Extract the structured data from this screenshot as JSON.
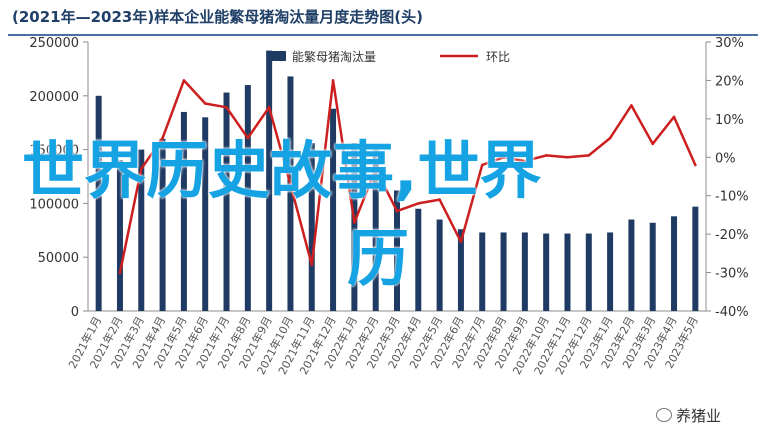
{
  "title": "(2021年—2023年)样本企业能繁母猪淘汰量月度走势图(头)",
  "overlay": {
    "line1": "世界历史故事,世界",
    "line2": "历"
  },
  "watermark": "养猪业",
  "colors": {
    "bar": "#1f3b64",
    "line": "#cc1f1f",
    "title": "#1f3f66",
    "overlay": "#15a3e3"
  },
  "chart_data": {
    "type": "bar",
    "categories": [
      "2021年1月",
      "2021年2月",
      "2021年3月",
      "2021年4月",
      "2021年5月",
      "2021年6月",
      "2021年7月",
      "2021年8月",
      "2021年9月",
      "2021年10月",
      "2021年11月",
      "2021年12月",
      "2022年1月",
      "2022年2月",
      "2022年3月",
      "2022年4月",
      "2022年5月",
      "2022年6月",
      "2022年7月",
      "2022年8月",
      "2022年9月",
      "2022年10月",
      "2022年11月",
      "2022年12月",
      "2023年1月",
      "2023年2月",
      "2023年3月",
      "2023年4月",
      "2023年5月"
    ],
    "series": [
      {
        "name": "能繁母猪淘汰量",
        "type": "bar",
        "axis": "left",
        "values": [
          200000,
          140000,
          150000,
          160000,
          185000,
          180000,
          203000,
          210000,
          242000,
          218000,
          156000,
          188000,
          156000,
          152000,
          112000,
          95000,
          85000,
          76000,
          73000,
          73000,
          73000,
          72000,
          72000,
          72000,
          73000,
          85000,
          82000,
          88000,
          97000
        ]
      },
      {
        "name": "环比",
        "type": "line",
        "axis": "right",
        "values": [
          null,
          -0.3,
          -0.03,
          0.05,
          0.2,
          0.14,
          0.13,
          0.05,
          0.13,
          -0.07,
          -0.28,
          0.2,
          -0.17,
          -0.03,
          -0.14,
          -0.12,
          -0.11,
          -0.22,
          -0.02,
          0.0,
          -0.01,
          0.005,
          0.0,
          0.005,
          0.05,
          0.135,
          0.035,
          0.105,
          -0.02
        ]
      }
    ],
    "y_left": {
      "min": 0,
      "max": 250000,
      "ticks": [
        "0",
        "50000",
        "100000",
        "150000",
        "200000",
        "250000"
      ]
    },
    "y_right": {
      "min": -0.4,
      "max": 0.3,
      "ticks": [
        "-40%",
        "-30%",
        "-20%",
        "-10%",
        "0%",
        "10%",
        "20%",
        "30%"
      ]
    },
    "legend_position": "top-center",
    "grid": false
  }
}
